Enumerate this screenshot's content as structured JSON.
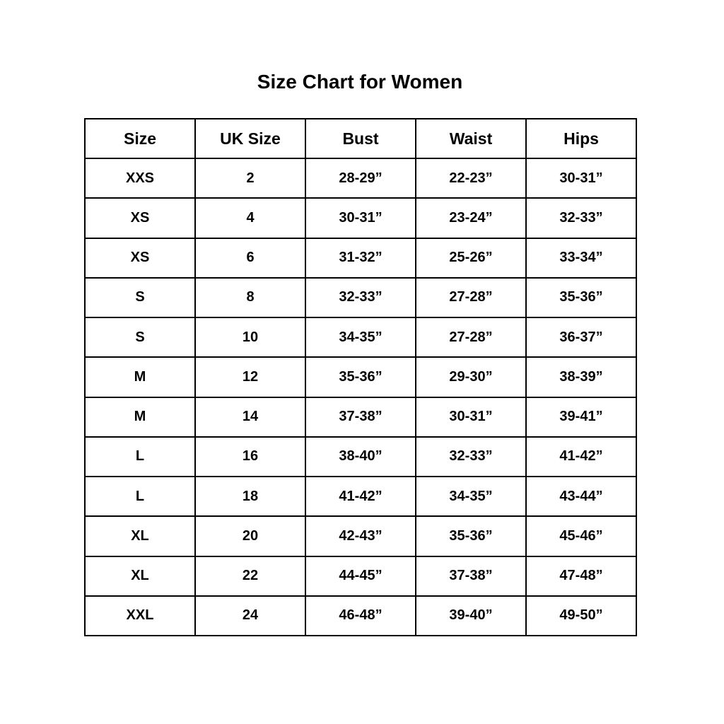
{
  "title": "Size Chart for Women",
  "columns": [
    "Size",
    "UK Size",
    "Bust",
    "Waist",
    "Hips"
  ],
  "rows": [
    [
      "XXS",
      "2",
      "28-29”",
      "22-23”",
      "30-31”"
    ],
    [
      "XS",
      "4",
      "30-31”",
      "23-24”",
      "32-33”"
    ],
    [
      "XS",
      "6",
      "31-32”",
      "25-26”",
      "33-34”"
    ],
    [
      "S",
      "8",
      "32-33”",
      "27-28”",
      "35-36”"
    ],
    [
      "S",
      "10",
      "34-35”",
      "27-28”",
      "36-37”"
    ],
    [
      "M",
      "12",
      "35-36”",
      "29-30”",
      "38-39”"
    ],
    [
      "M",
      "14",
      "37-38”",
      "30-31”",
      "39-41”"
    ],
    [
      "L",
      "16",
      "38-40”",
      "32-33”",
      "41-42”"
    ],
    [
      "L",
      "18",
      "41-42”",
      "34-35”",
      "43-44”"
    ],
    [
      "XL",
      "20",
      "42-43”",
      "35-36”",
      "45-46”"
    ],
    [
      "XL",
      "22",
      "44-45”",
      "37-38”",
      "47-48”"
    ],
    [
      "XXL",
      "24",
      "46-48”",
      "39-40”",
      "49-50”"
    ]
  ]
}
